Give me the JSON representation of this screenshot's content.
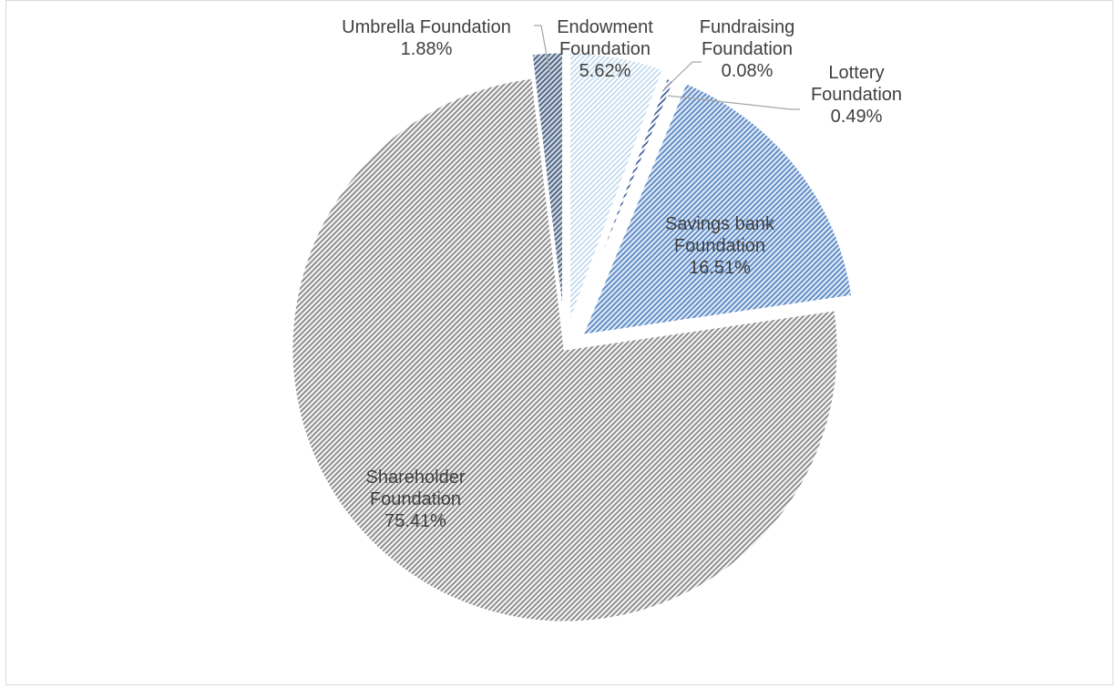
{
  "chart_data": {
    "type": "pie",
    "title": "",
    "start_angle_deg": 0,
    "direction": "clockwise",
    "slices": [
      {
        "label": "Endowment Foundation",
        "value": 5.62,
        "display": "5.62%",
        "color": "#bdd7ee",
        "hatch": "#ffffff",
        "label_lines": [
          "Endowment",
          "Foundation",
          "5.62%"
        ]
      },
      {
        "label": "Fundraising Foundation",
        "value": 0.08,
        "display": "0.08%",
        "color": "#8fb3dc",
        "hatch": "#ffffff",
        "label_lines": [
          "Fundraising",
          "Foundation",
          "0.08%"
        ]
      },
      {
        "label": "Lottery Foundation",
        "value": 0.49,
        "display": "0.49%",
        "color": "#2f5597",
        "hatch": "#ffffff",
        "label_lines": [
          "Lottery",
          "Foundation",
          "0.49%"
        ]
      },
      {
        "label": "Savings bank Foundation",
        "value": 16.51,
        "display": "16.51%",
        "color": "#4f7fbf",
        "hatch": "#dbe7f5",
        "label_lines": [
          "Savings bank",
          "Foundation",
          "16.51%"
        ]
      },
      {
        "label": "Shareholder Foundation",
        "value": 75.41,
        "display": "75.41%",
        "color": "#7f7f7f",
        "hatch": "#f2f2f2",
        "label_lines": [
          "Shareholder",
          "Foundation",
          "75.41%"
        ]
      },
      {
        "label": "Umbrella Foundation",
        "value": 1.88,
        "display": "1.88%",
        "color": "#44546a",
        "hatch": "#c9d6ea",
        "label_lines": [
          "Umbrella Foundation",
          "1.88%"
        ]
      }
    ],
    "border_color": "#ffffff",
    "leader_line_color": "#a6a6a6"
  }
}
